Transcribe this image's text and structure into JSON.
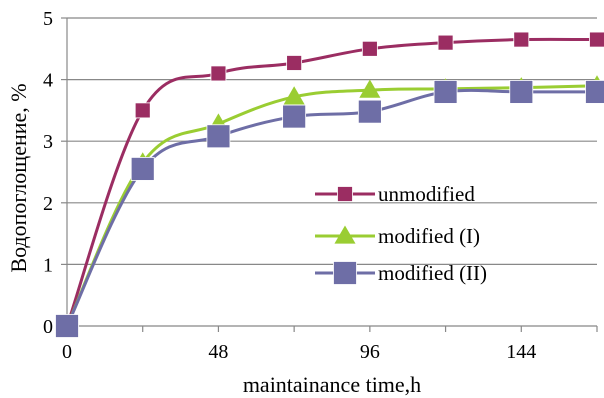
{
  "chart_data": {
    "type": "line",
    "xlabel": "maintainance time,h",
    "ylabel": "Водопоглощение, %",
    "xlim": [
      0,
      168
    ],
    "ylim": [
      0,
      5
    ],
    "x_ticks": [
      0,
      48,
      96,
      144
    ],
    "x_tick_labels": [
      "0",
      "48",
      "96",
      "144"
    ],
    "y_ticks": [
      0,
      1,
      2,
      3,
      4,
      5
    ],
    "y_tick_labels": [
      "0",
      "1",
      "2",
      "3",
      "4",
      "5"
    ],
    "grid": "horizontal",
    "legend_position": "center-right",
    "series": [
      {
        "name": "unmodified",
        "color": "#9b2d62",
        "marker": "square",
        "x": [
          0,
          24,
          48,
          72,
          96,
          120,
          144,
          168
        ],
        "y": [
          0,
          3.5,
          4.1,
          4.27,
          4.5,
          4.6,
          4.65,
          4.65
        ]
      },
      {
        "name": "modified (I)",
        "color": "#9acd32",
        "marker": "triangle",
        "x": [
          0,
          24,
          48,
          72,
          96,
          120,
          144,
          168
        ],
        "y": [
          0,
          2.65,
          3.28,
          3.72,
          3.83,
          3.85,
          3.87,
          3.9
        ]
      },
      {
        "name": "modified  (II)",
        "color": "#6e6ea6",
        "marker": "square",
        "x": [
          0,
          24,
          48,
          72,
          96,
          120,
          144,
          168
        ],
        "y": [
          0,
          2.55,
          3.08,
          3.4,
          3.48,
          3.8,
          3.8,
          3.8
        ]
      }
    ]
  }
}
